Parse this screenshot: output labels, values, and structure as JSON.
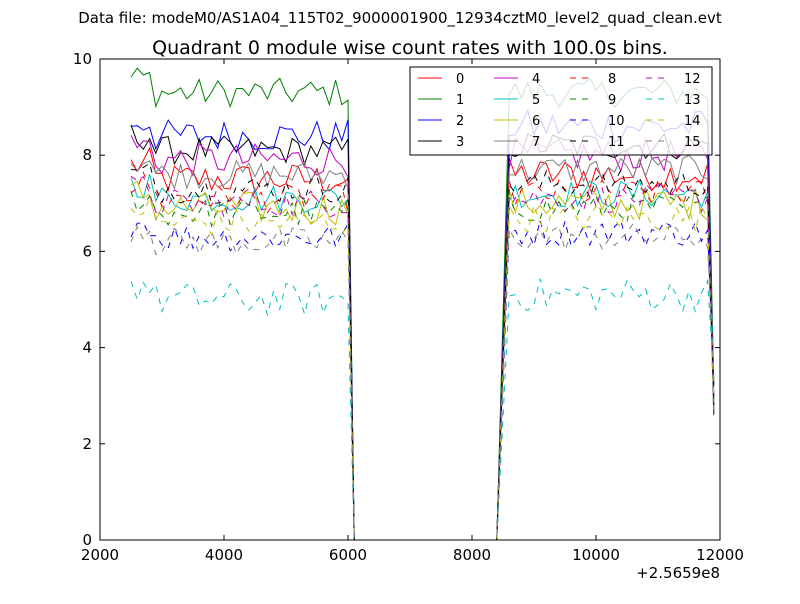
{
  "suptitle": "Data file: modeM0/AS1A04_115T02_9000001900_12934cztM0_level2_quad_clean.evt",
  "chart_data": {
    "type": "line",
    "title": "Quadrant 0 module wise count rates with 100.0s bins.",
    "xlabel": "",
    "ylabel": "",
    "x_offset_label": "+2.5659e8",
    "xlim": [
      2000,
      12000
    ],
    "ylim": [
      0,
      10
    ],
    "x_ticks": [
      2000,
      4000,
      6000,
      8000,
      10000,
      12000
    ],
    "y_ticks": [
      0,
      2,
      4,
      6,
      8,
      10
    ],
    "grid": false,
    "legend": {
      "placement": "top-right",
      "columns": 4
    },
    "x_note": "x values are offsets from 2.5659e8 as shown on axis; series sampled every 100 s in two segments [2500..6000] and [8600..11800], zero in the gap",
    "series": [
      {
        "name": "0",
        "color": "#ff0000",
        "dash": "solid",
        "level1": 7.5,
        "level2": 7.6,
        "amp": 0.35
      },
      {
        "name": "1",
        "color": "#008000",
        "dash": "solid",
        "level1": 9.3,
        "level2": 9.3,
        "amp": 0.3
      },
      {
        "name": "2",
        "color": "#0000ff",
        "dash": "solid",
        "level1": 8.4,
        "level2": 8.6,
        "amp": 0.35
      },
      {
        "name": "3",
        "color": "#000000",
        "dash": "solid",
        "level1": 8.1,
        "level2": 8.2,
        "amp": 0.3
      },
      {
        "name": "4",
        "color": "#bf00bf",
        "dash": "solid",
        "level1": 7.9,
        "level2": 8.0,
        "amp": 0.35
      },
      {
        "name": "5",
        "color": "#00bfbf",
        "dash": "solid",
        "level1": 7.1,
        "level2": 7.2,
        "amp": 0.3
      },
      {
        "name": "6",
        "color": "#bfbf00",
        "dash": "solid",
        "level1": 6.9,
        "level2": 7.0,
        "amp": 0.35
      },
      {
        "name": "7",
        "color": "#808080",
        "dash": "solid",
        "level1": 7.6,
        "level2": 7.7,
        "amp": 0.3
      },
      {
        "name": "8",
        "color": "#ff0000",
        "dash": "dashed",
        "level1": 7.1,
        "level2": 7.2,
        "amp": 0.3
      },
      {
        "name": "9",
        "color": "#008000",
        "dash": "dashed",
        "level1": 6.8,
        "level2": 6.9,
        "amp": 0.3
      },
      {
        "name": "10",
        "color": "#0000ff",
        "dash": "dashed",
        "level1": 6.3,
        "level2": 6.4,
        "amp": 0.3
      },
      {
        "name": "11",
        "color": "#000000",
        "dash": "dashed",
        "level1": 7.3,
        "level2": 7.4,
        "amp": 0.3
      },
      {
        "name": "12",
        "color": "#bf00bf",
        "dash": "dashed",
        "level1": 7.0,
        "level2": 7.1,
        "amp": 0.3
      },
      {
        "name": "13",
        "color": "#00bfbf",
        "dash": "dashed",
        "level1": 5.0,
        "level2": 5.1,
        "amp": 0.35
      },
      {
        "name": "14",
        "color": "#bfbf00",
        "dash": "dashed",
        "level1": 6.6,
        "level2": 6.7,
        "amp": 0.3
      },
      {
        "name": "15",
        "color": "#808080",
        "dash": "dashed",
        "level1": 6.2,
        "level2": 6.3,
        "amp": 0.3
      }
    ]
  }
}
